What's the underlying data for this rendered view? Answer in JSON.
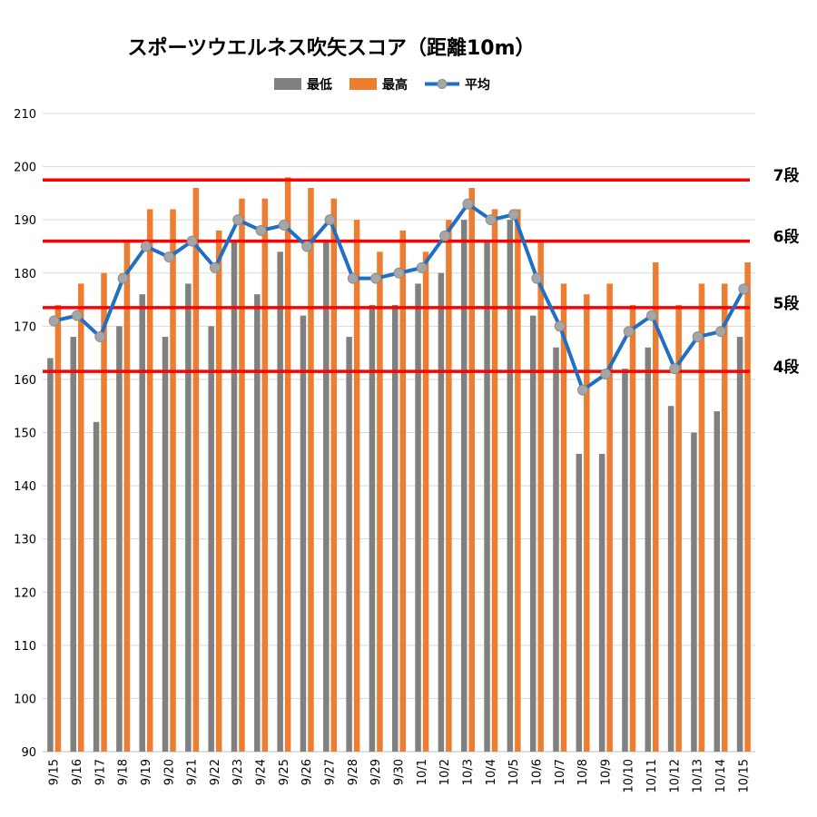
{
  "chart_data": {
    "type": "bar",
    "title": "スポーツウエルネス吹矢スコア（距離10m）",
    "categories": [
      "9/15",
      "9/16",
      "9/17",
      "9/18",
      "9/19",
      "9/20",
      "9/21",
      "9/22",
      "9/23",
      "9/24",
      "9/25",
      "9/26",
      "9/27",
      "9/28",
      "9/29",
      "9/30",
      "10/1",
      "10/2",
      "10/3",
      "10/4",
      "10/5",
      "10/6",
      "10/7",
      "10/8",
      "10/9",
      "10/10",
      "10/11",
      "10/12",
      "10/13",
      "10/14",
      "10/15"
    ],
    "series": [
      {
        "name": "最低",
        "type": "bar",
        "color": "#808080",
        "values": [
          164,
          168,
          152,
          170,
          176,
          168,
          178,
          170,
          186,
          176,
          184,
          172,
          186,
          168,
          174,
          174,
          178,
          180,
          190,
          186,
          190,
          172,
          166,
          146,
          146,
          162,
          166,
          155,
          150,
          154,
          168
        ]
      },
      {
        "name": "最高",
        "type": "bar",
        "color": "#ed7d31",
        "values": [
          174,
          178,
          180,
          186,
          192,
          192,
          196,
          188,
          194,
          194,
          198,
          196,
          194,
          190,
          184,
          188,
          184,
          190,
          196,
          192,
          192,
          186,
          178,
          176,
          178,
          174,
          182,
          174,
          178,
          178,
          182
        ]
      },
      {
        "name": "平均",
        "type": "line",
        "color": "#1f6fc5",
        "marker_color": "#a6a6a6",
        "values": [
          171,
          172,
          168,
          179,
          185,
          183,
          186,
          181,
          190,
          188,
          189,
          185,
          190,
          179,
          179,
          180,
          181,
          187,
          193,
          190,
          191,
          179,
          170,
          158,
          161,
          169,
          172,
          162,
          168,
          169,
          177
        ]
      }
    ],
    "yticks": [
      "90",
      "100",
      "110",
      "120",
      "130",
      "140",
      "150",
      "160",
      "170",
      "180",
      "190",
      "200",
      "210"
    ],
    "ylim": [
      90,
      210
    ],
    "grid": true,
    "legend_position": "top",
    "reference_lines": [
      {
        "label": "7段",
        "value": 197.5,
        "color": "#ff0000"
      },
      {
        "label": "6段",
        "value": 186,
        "color": "#ff0000"
      },
      {
        "label": "5段",
        "value": 173.5,
        "color": "#ff0000"
      },
      {
        "label": "4段",
        "value": 161.5,
        "color": "#ff0000"
      }
    ]
  }
}
